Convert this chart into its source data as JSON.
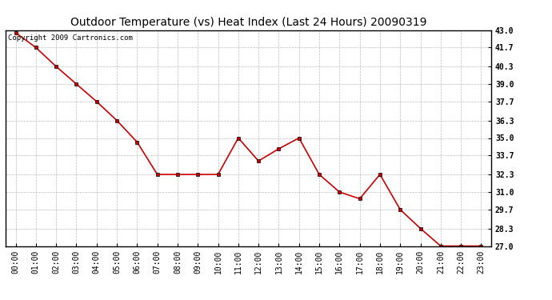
{
  "title": "Outdoor Temperature (vs) Heat Index (Last 24 Hours) 20090319",
  "copyright_text": "Copyright 2009 Cartronics.com",
  "x_labels": [
    "00:00",
    "01:00",
    "02:00",
    "03:00",
    "04:00",
    "05:00",
    "06:00",
    "07:00",
    "08:00",
    "09:00",
    "10:00",
    "11:00",
    "12:00",
    "13:00",
    "14:00",
    "15:00",
    "16:00",
    "17:00",
    "18:00",
    "19:00",
    "20:00",
    "21:00",
    "22:00",
    "23:00"
  ],
  "y_values": [
    42.8,
    41.7,
    40.3,
    39.0,
    37.7,
    36.3,
    34.7,
    32.3,
    32.3,
    32.3,
    32.3,
    35.0,
    33.3,
    34.2,
    35.0,
    32.3,
    31.0,
    30.5,
    32.3,
    29.7,
    28.3,
    27.0,
    27.0,
    27.0
  ],
  "line_color": "#cc0000",
  "marker": "s",
  "marker_size": 2.5,
  "marker_color": "#000000",
  "background_color": "#ffffff",
  "grid_color": "#bbbbbb",
  "ylim_min": 27.0,
  "ylim_max": 43.0,
  "yticks": [
    27.0,
    28.3,
    29.7,
    31.0,
    32.3,
    33.7,
    35.0,
    36.3,
    37.7,
    39.0,
    40.3,
    41.7,
    43.0
  ],
  "title_fontsize": 10,
  "tick_fontsize": 7,
  "copyright_fontsize": 6.5
}
